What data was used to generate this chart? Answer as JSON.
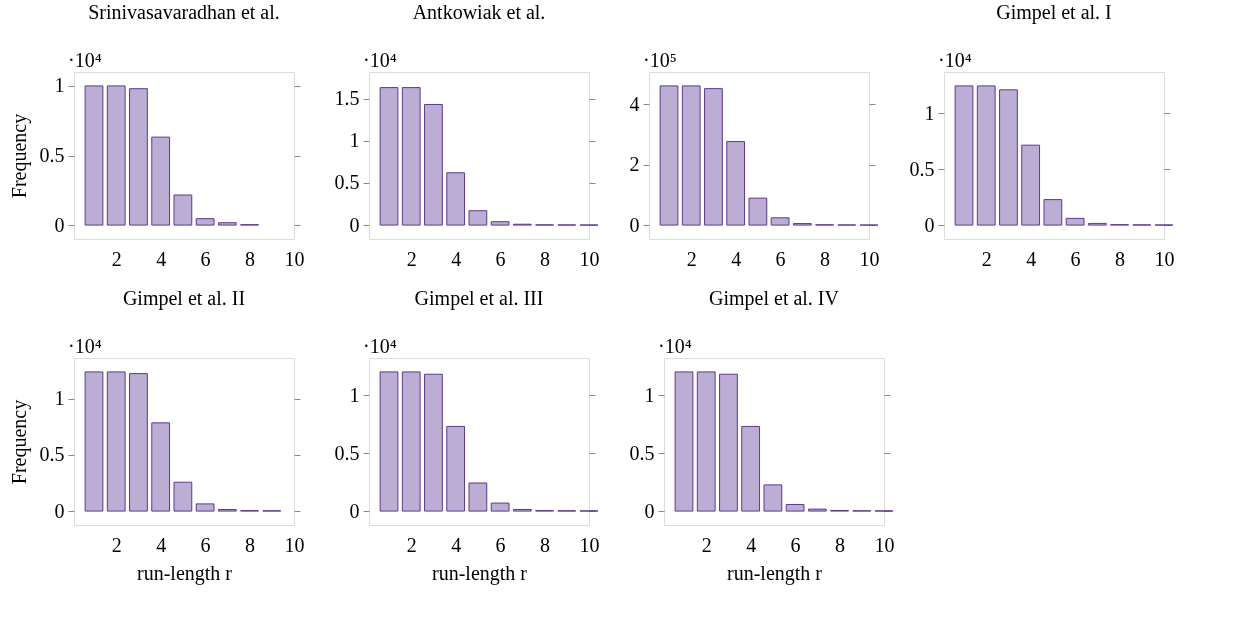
{
  "chart_data": [
    {
      "type": "bar",
      "title": "Srinivasavaradhan et al.",
      "ylabel": "Frequency",
      "annotations": [
        "·10⁴"
      ],
      "color": "#bcadd4",
      "x": [
        1,
        2,
        3,
        4,
        5,
        6,
        7,
        8
      ],
      "values": [
        1.0,
        1.0,
        0.98,
        0.632,
        0.216,
        0.046,
        0.017,
        0.003
      ],
      "xlim": [
        0.1,
        10
      ],
      "xticks": [
        2,
        4,
        6,
        8,
        10
      ],
      "ylim": [
        -0.1,
        1.1
      ],
      "yticks": [
        0,
        0.5,
        1
      ],
      "grid": false
    },
    {
      "type": "bar",
      "title": "Antkowiak et al.",
      "annotations": [
        "·10⁴"
      ],
      "color": "#bcadd4",
      "x": [
        1,
        2,
        3,
        4,
        5,
        6,
        7,
        8,
        9,
        10
      ],
      "values": [
        1.63,
        1.63,
        1.43,
        0.62,
        0.17,
        0.04,
        0.01,
        0.003,
        0.002,
        0.001
      ],
      "xlim": [
        0.1,
        10
      ],
      "xticks": [
        2,
        4,
        6,
        8,
        10
      ],
      "ylim": [
        -0.165,
        1.815
      ],
      "yticks": [
        0,
        0.5,
        1,
        1.5
      ],
      "grid": false
    },
    {
      "type": "bar",
      "annotations": [
        "·10⁵"
      ],
      "color": "#bcadd4",
      "x": [
        1,
        2,
        3,
        4,
        5,
        6,
        7,
        8,
        9,
        10
      ],
      "values": [
        4.6,
        4.6,
        4.51,
        2.76,
        0.89,
        0.24,
        0.05,
        0.01,
        0.005,
        0.002
      ],
      "xlim": [
        0.1,
        10
      ],
      "xticks": [
        2,
        4,
        6,
        8,
        10
      ],
      "ylim": [
        -0.46,
        5.06
      ],
      "yticks": [
        0,
        2,
        4
      ],
      "grid": false
    },
    {
      "type": "bar",
      "title": "Gimpel et al. I",
      "annotations": [
        "·10⁴"
      ],
      "color": "#bcadd4",
      "x": [
        1,
        2,
        3,
        4,
        5,
        6,
        7,
        8,
        9,
        10
      ],
      "values": [
        1.245,
        1.245,
        1.21,
        0.715,
        0.228,
        0.06,
        0.015,
        0.004,
        0.002,
        0.001
      ],
      "xlim": [
        0.1,
        10
      ],
      "xticks": [
        2,
        4,
        6,
        8,
        10
      ],
      "ylim": [
        -0.1245,
        1.3695
      ],
      "yticks": [
        0,
        0.5,
        1
      ],
      "grid": false
    },
    {
      "type": "bar",
      "title": "Gimpel et al. II",
      "ylabel": "Frequency",
      "xlabel": "run-length r",
      "annotations": [
        "·10⁴"
      ],
      "color": "#bcadd4",
      "x": [
        1,
        2,
        3,
        4,
        5,
        6,
        7,
        8,
        9
      ],
      "values": [
        1.24,
        1.24,
        1.225,
        0.786,
        0.257,
        0.064,
        0.014,
        0.004,
        0.003
      ],
      "xlim": [
        0.1,
        10
      ],
      "xticks": [
        2,
        4,
        6,
        8,
        10
      ],
      "ylim": [
        -0.124,
        1.364
      ],
      "yticks": [
        0,
        0.5,
        1
      ],
      "grid": false
    },
    {
      "type": "bar",
      "title": "Gimpel et al. III",
      "xlabel": "run-length r",
      "annotations": [
        "·10⁴"
      ],
      "color": "#bcadd4",
      "x": [
        1,
        2,
        3,
        4,
        5,
        6,
        7,
        8,
        9,
        10
      ],
      "values": [
        1.2,
        1.2,
        1.18,
        0.73,
        0.242,
        0.069,
        0.014,
        0.004,
        0.003,
        0.002
      ],
      "xlim": [
        0.1,
        10
      ],
      "xticks": [
        2,
        4,
        6,
        8,
        10
      ],
      "ylim": [
        -0.12,
        1.32
      ],
      "yticks": [
        0,
        0.5,
        1
      ],
      "grid": false
    },
    {
      "type": "bar",
      "title": "Gimpel et al. IV",
      "xlabel": "run-length r",
      "annotations": [
        "·10⁴"
      ],
      "color": "#bcadd4",
      "x": [
        1,
        2,
        3,
        4,
        5,
        6,
        7,
        8,
        9,
        10
      ],
      "values": [
        1.2,
        1.2,
        1.18,
        0.73,
        0.226,
        0.057,
        0.017,
        0.005,
        0.003,
        0.002
      ],
      "xlim": [
        0.1,
        10
      ],
      "xticks": [
        2,
        4,
        6,
        8,
        10
      ],
      "ylim": [
        -0.12,
        1.32
      ],
      "yticks": [
        0,
        0.5,
        1
      ],
      "grid": false
    }
  ]
}
